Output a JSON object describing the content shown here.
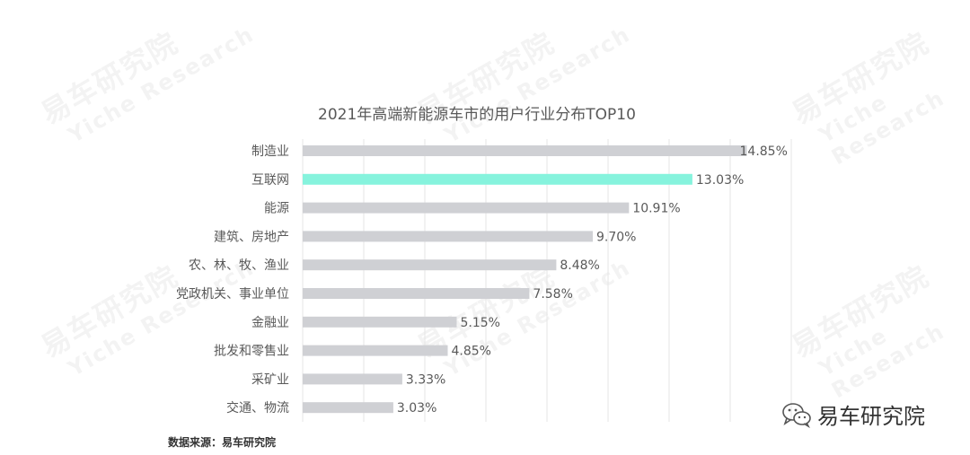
{
  "watermark": {
    "cn": "易车研究院",
    "en": "Yiche Research"
  },
  "source_label": "数据来源：易车研究院",
  "brand": {
    "name": "易车研究院",
    "icon": "wechat-icon"
  },
  "colors": {
    "bar": "#cfd0d4",
    "highlight": "#86f3dd",
    "grid": "#e6e6e6",
    "text": "#595959"
  },
  "chart_data": {
    "type": "bar",
    "orientation": "horizontal",
    "title": "2021年高端新能源车市的用户行业分布TOP10",
    "categories": [
      "制造业",
      "互联网",
      "能源",
      "建筑、房地产",
      "农、林、牧、渔业",
      "党政机关、事业单位",
      "金融业",
      "批发和零售业",
      "采矿业",
      "交通、物流"
    ],
    "values": [
      14.85,
      13.03,
      10.91,
      9.7,
      8.48,
      7.58,
      5.15,
      4.85,
      3.33,
      3.03
    ],
    "value_labels": [
      "14.85%",
      "13.03%",
      "10.91%",
      "9.70%",
      "8.48%",
      "7.58%",
      "5.15%",
      "4.85%",
      "3.33%",
      "3.03%"
    ],
    "highlight_index": 1,
    "xlim": [
      0,
      15
    ],
    "grid": true,
    "legend": "none"
  }
}
